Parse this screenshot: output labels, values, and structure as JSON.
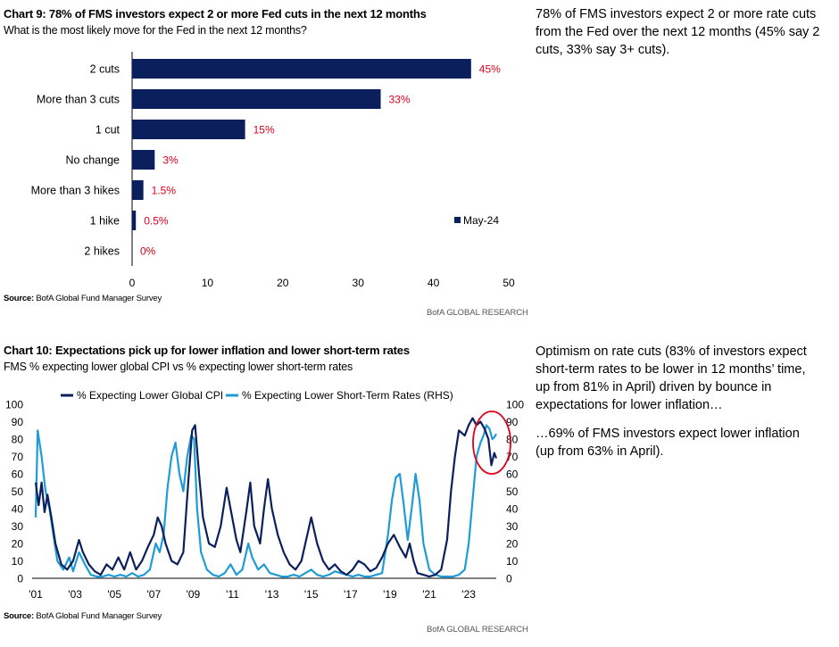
{
  "chart9": {
    "title": "Chart 9: 78% of FMS investors expect 2 or more Fed cuts in the next 12 months",
    "subtitle": "What is the most likely move for the Fed in the next 12 months?",
    "source_label": "Source:",
    "source_text": " BofA Global Fund Manager Survey",
    "credit": "BofA GLOBAL RESEARCH",
    "commentary": "78% of FMS investors expect 2 or more rate cuts from the Fed over the next 12 months (45% say 2 cuts, 33% say 3+ cuts)."
  },
  "chart10": {
    "title": "Chart 10: Expectations pick up for lower inflation and lower short-term rates",
    "subtitle": "FMS % expecting lower global CPI vs % expecting lower short-term rates",
    "source_label": "Source:",
    "source_text": " BofA Global Fund Manager Survey",
    "credit": "BofA GLOBAL RESEARCH",
    "commentary_1": "Optimism on rate cuts (83% of investors expect short-term rates to be lower in 12 months’ time, up from 81% in April) driven by bounce in expectations for lower inflation…",
    "commentary_2": "…69% of FMS investors expect lower inflation (up from 63% in April)."
  },
  "colors": {
    "navy": "#0b1f5c",
    "lightblue": "#1f9bd7",
    "label_red": "#e0001b",
    "highlight_circle": "#e0001b"
  },
  "chart_data": [
    {
      "type": "bar",
      "orientation": "horizontal",
      "title": "Chart 9: 78% of FMS investors expect 2 or more Fed cuts in the next 12 months",
      "subtitle": "What is the most likely move for the Fed in the next 12 months?",
      "categories": [
        "2 cuts",
        "More than 3 cuts",
        "1 cut",
        "No change",
        "More than 3 hikes",
        "1 hike",
        "2 hikes"
      ],
      "series": [
        {
          "name": "May-24",
          "values": [
            45,
            33,
            15,
            3,
            1.5,
            0.5,
            0
          ]
        }
      ],
      "data_labels": [
        "45%",
        "33%",
        "15%",
        "3%",
        "1.5%",
        "0.5%",
        "0%"
      ],
      "xlim": [
        0,
        50
      ],
      "xticks": [
        "0",
        "10",
        "20",
        "30",
        "40",
        "50"
      ],
      "legend_position": "bottom-right",
      "grid": false
    },
    {
      "type": "line",
      "title": "Chart 10: Expectations pick up for lower inflation and lower short-term rates",
      "subtitle": "FMS % expecting lower global CPI vs % expecting lower short-term rates",
      "xlim": [
        2001,
        2024.4
      ],
      "x_ticks": [
        "'01",
        "'03",
        "'05",
        "'07",
        "'09",
        "'11",
        "'13",
        "'15",
        "'17",
        "'19",
        "'21",
        "'23"
      ],
      "x_tick_values": [
        2001,
        2003,
        2005,
        2007,
        2009,
        2011,
        2013,
        2015,
        2017,
        2019,
        2021,
        2023
      ],
      "ylim_left": [
        0,
        100
      ],
      "ylim_right": [
        0,
        100
      ],
      "y_ticks": [
        "0",
        "10",
        "20",
        "30",
        "40",
        "50",
        "60",
        "70",
        "80",
        "90",
        "100"
      ],
      "series": [
        {
          "name": "% Expecting Lower Global CPI",
          "axis": "left",
          "points": [
            [
              2001.0,
              55
            ],
            [
              2001.15,
              42
            ],
            [
              2001.3,
              55
            ],
            [
              2001.45,
              38
            ],
            [
              2001.6,
              48
            ],
            [
              2001.8,
              35
            ],
            [
              2002.0,
              20
            ],
            [
              2002.3,
              8
            ],
            [
              2002.6,
              5
            ],
            [
              2002.9,
              10
            ],
            [
              2003.2,
              22
            ],
            [
              2003.4,
              15
            ],
            [
              2003.7,
              8
            ],
            [
              2004.0,
              4
            ],
            [
              2004.3,
              2
            ],
            [
              2004.6,
              8
            ],
            [
              2004.9,
              5
            ],
            [
              2005.2,
              12
            ],
            [
              2005.5,
              5
            ],
            [
              2005.8,
              15
            ],
            [
              2006.1,
              5
            ],
            [
              2006.4,
              10
            ],
            [
              2006.7,
              18
            ],
            [
              2007.0,
              25
            ],
            [
              2007.2,
              35
            ],
            [
              2007.4,
              30
            ],
            [
              2007.6,
              20
            ],
            [
              2007.9,
              10
            ],
            [
              2008.2,
              8
            ],
            [
              2008.5,
              15
            ],
            [
              2008.75,
              55
            ],
            [
              2008.95,
              85
            ],
            [
              2009.1,
              88
            ],
            [
              2009.3,
              60
            ],
            [
              2009.5,
              35
            ],
            [
              2009.8,
              20
            ],
            [
              2010.1,
              18
            ],
            [
              2010.4,
              30
            ],
            [
              2010.7,
              52
            ],
            [
              2010.9,
              40
            ],
            [
              2011.2,
              22
            ],
            [
              2011.4,
              15
            ],
            [
              2011.7,
              38
            ],
            [
              2011.9,
              55
            ],
            [
              2012.1,
              30
            ],
            [
              2012.4,
              20
            ],
            [
              2012.6,
              40
            ],
            [
              2012.8,
              57
            ],
            [
              2013.0,
              40
            ],
            [
              2013.3,
              25
            ],
            [
              2013.6,
              15
            ],
            [
              2013.9,
              8
            ],
            [
              2014.2,
              5
            ],
            [
              2014.5,
              10
            ],
            [
              2014.8,
              25
            ],
            [
              2015.0,
              35
            ],
            [
              2015.3,
              20
            ],
            [
              2015.6,
              10
            ],
            [
              2015.9,
              5
            ],
            [
              2016.2,
              8
            ],
            [
              2016.5,
              4
            ],
            [
              2016.8,
              2
            ],
            [
              2017.1,
              5
            ],
            [
              2017.4,
              10
            ],
            [
              2017.7,
              8
            ],
            [
              2018.0,
              4
            ],
            [
              2018.3,
              6
            ],
            [
              2018.6,
              12
            ],
            [
              2018.9,
              20
            ],
            [
              2019.2,
              25
            ],
            [
              2019.5,
              18
            ],
            [
              2019.8,
              12
            ],
            [
              2020.0,
              20
            ],
            [
              2020.2,
              10
            ],
            [
              2020.4,
              3
            ],
            [
              2020.7,
              2
            ],
            [
              2021.0,
              1
            ],
            [
              2021.3,
              2
            ],
            [
              2021.6,
              5
            ],
            [
              2021.9,
              22
            ],
            [
              2022.1,
              50
            ],
            [
              2022.3,
              70
            ],
            [
              2022.5,
              85
            ],
            [
              2022.8,
              82
            ],
            [
              2023.0,
              88
            ],
            [
              2023.2,
              92
            ],
            [
              2023.4,
              88
            ],
            [
              2023.6,
              90
            ],
            [
              2023.8,
              86
            ],
            [
              2024.0,
              80
            ],
            [
              2024.15,
              65
            ],
            [
              2024.3,
              72
            ],
            [
              2024.4,
              69
            ]
          ]
        },
        {
          "name": "% Expecting Lower Short-Term Rates (RHS)",
          "axis": "right",
          "points": [
            [
              2001.0,
              35
            ],
            [
              2001.1,
              85
            ],
            [
              2001.3,
              70
            ],
            [
              2001.5,
              50
            ],
            [
              2001.7,
              40
            ],
            [
              2001.9,
              25
            ],
            [
              2002.1,
              10
            ],
            [
              2002.4,
              5
            ],
            [
              2002.7,
              12
            ],
            [
              2002.9,
              4
            ],
            [
              2003.2,
              15
            ],
            [
              2003.5,
              8
            ],
            [
              2003.8,
              2
            ],
            [
              2004.1,
              1
            ],
            [
              2004.4,
              1
            ],
            [
              2004.7,
              2
            ],
            [
              2005.0,
              1
            ],
            [
              2005.3,
              2
            ],
            [
              2005.6,
              1
            ],
            [
              2005.9,
              3
            ],
            [
              2006.2,
              1
            ],
            [
              2006.5,
              2
            ],
            [
              2006.8,
              5
            ],
            [
              2007.1,
              20
            ],
            [
              2007.3,
              15
            ],
            [
              2007.5,
              25
            ],
            [
              2007.7,
              52
            ],
            [
              2007.9,
              70
            ],
            [
              2008.1,
              78
            ],
            [
              2008.3,
              60
            ],
            [
              2008.5,
              50
            ],
            [
              2008.7,
              70
            ],
            [
              2008.9,
              82
            ],
            [
              2009.05,
              80
            ],
            [
              2009.2,
              40
            ],
            [
              2009.4,
              15
            ],
            [
              2009.7,
              5
            ],
            [
              2010.0,
              2
            ],
            [
              2010.3,
              1
            ],
            [
              2010.6,
              3
            ],
            [
              2010.9,
              8
            ],
            [
              2011.2,
              2
            ],
            [
              2011.5,
              5
            ],
            [
              2011.8,
              20
            ],
            [
              2012.0,
              12
            ],
            [
              2012.3,
              5
            ],
            [
              2012.6,
              8
            ],
            [
              2012.9,
              3
            ],
            [
              2013.2,
              2
            ],
            [
              2013.5,
              1
            ],
            [
              2013.8,
              1
            ],
            [
              2014.1,
              2
            ],
            [
              2014.4,
              1
            ],
            [
              2014.7,
              3
            ],
            [
              2015.0,
              5
            ],
            [
              2015.3,
              2
            ],
            [
              2015.6,
              1
            ],
            [
              2015.9,
              2
            ],
            [
              2016.2,
              4
            ],
            [
              2016.5,
              3
            ],
            [
              2016.8,
              2
            ],
            [
              2017.1,
              1
            ],
            [
              2017.4,
              2
            ],
            [
              2017.7,
              1
            ],
            [
              2018.0,
              1
            ],
            [
              2018.3,
              2
            ],
            [
              2018.6,
              3
            ],
            [
              2018.9,
              25
            ],
            [
              2019.1,
              45
            ],
            [
              2019.3,
              58
            ],
            [
              2019.5,
              60
            ],
            [
              2019.7,
              42
            ],
            [
              2019.9,
              22
            ],
            [
              2020.1,
              40
            ],
            [
              2020.3,
              60
            ],
            [
              2020.5,
              45
            ],
            [
              2020.7,
              20
            ],
            [
              2021.0,
              5
            ],
            [
              2021.3,
              2
            ],
            [
              2021.6,
              1
            ],
            [
              2021.9,
              1
            ],
            [
              2022.2,
              1
            ],
            [
              2022.5,
              2
            ],
            [
              2022.8,
              5
            ],
            [
              2023.0,
              20
            ],
            [
              2023.2,
              45
            ],
            [
              2023.4,
              70
            ],
            [
              2023.6,
              78
            ],
            [
              2023.75,
              82
            ],
            [
              2023.9,
              88
            ],
            [
              2024.05,
              86
            ],
            [
              2024.2,
              80
            ],
            [
              2024.3,
              81
            ],
            [
              2024.4,
              83
            ]
          ]
        }
      ],
      "annotation": "red circle around latest observations",
      "legend_position": "top",
      "grid": false
    }
  ]
}
